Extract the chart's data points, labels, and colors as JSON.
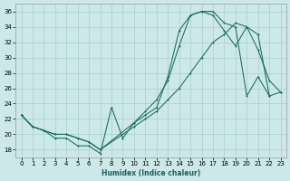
{
  "xlabel": "Humidex (Indice chaleur)",
  "ylabel": "",
  "bg_color": "#cce8e8",
  "line_color": "#1a6b5f",
  "grid_color": "#aacfcf",
  "xlim": [
    -0.5,
    23.5
  ],
  "ylim": [
    17,
    37
  ],
  "yticks": [
    18,
    20,
    22,
    24,
    26,
    28,
    30,
    32,
    34,
    36
  ],
  "xticks": [
    0,
    1,
    2,
    3,
    4,
    5,
    6,
    7,
    8,
    9,
    10,
    11,
    12,
    13,
    14,
    15,
    16,
    17,
    18,
    19,
    20,
    21,
    22,
    23
  ],
  "line1_x": [
    0,
    1,
    2,
    3,
    4,
    5,
    6,
    7,
    8,
    9,
    10,
    11,
    12,
    13,
    14,
    15,
    16,
    17,
    18,
    19,
    20,
    21,
    22
  ],
  "line1_y": [
    22.5,
    21.0,
    20.5,
    19.5,
    19.5,
    18.5,
    18.5,
    17.5,
    23.5,
    19.5,
    21.5,
    22.5,
    23.5,
    27.5,
    33.5,
    35.5,
    36.0,
    36.0,
    34.5,
    34.0,
    25.0,
    27.5,
    25.0
  ],
  "line2_x": [
    0,
    1,
    2,
    3,
    4,
    5,
    6,
    7,
    10,
    11,
    12,
    13,
    14,
    15,
    16,
    17,
    18,
    19,
    20,
    21,
    22,
    23
  ],
  "line2_y": [
    22.5,
    21.0,
    20.5,
    20.0,
    20.0,
    19.5,
    19.0,
    18.0,
    21.5,
    23.0,
    24.5,
    27.0,
    31.5,
    35.5,
    36.0,
    35.5,
    33.5,
    31.5,
    34.0,
    31.0,
    27.0,
    25.5
  ],
  "line3_x": [
    0,
    1,
    2,
    3,
    4,
    5,
    6,
    7,
    10,
    11,
    12,
    13,
    14,
    15,
    16,
    17,
    18,
    19,
    20,
    21,
    22,
    23
  ],
  "line3_y": [
    22.5,
    21.0,
    20.5,
    20.0,
    20.0,
    19.5,
    19.0,
    18.0,
    21.0,
    22.0,
    23.0,
    24.5,
    26.0,
    28.0,
    30.0,
    32.0,
    33.0,
    34.5,
    34.0,
    33.0,
    25.0,
    25.5
  ]
}
